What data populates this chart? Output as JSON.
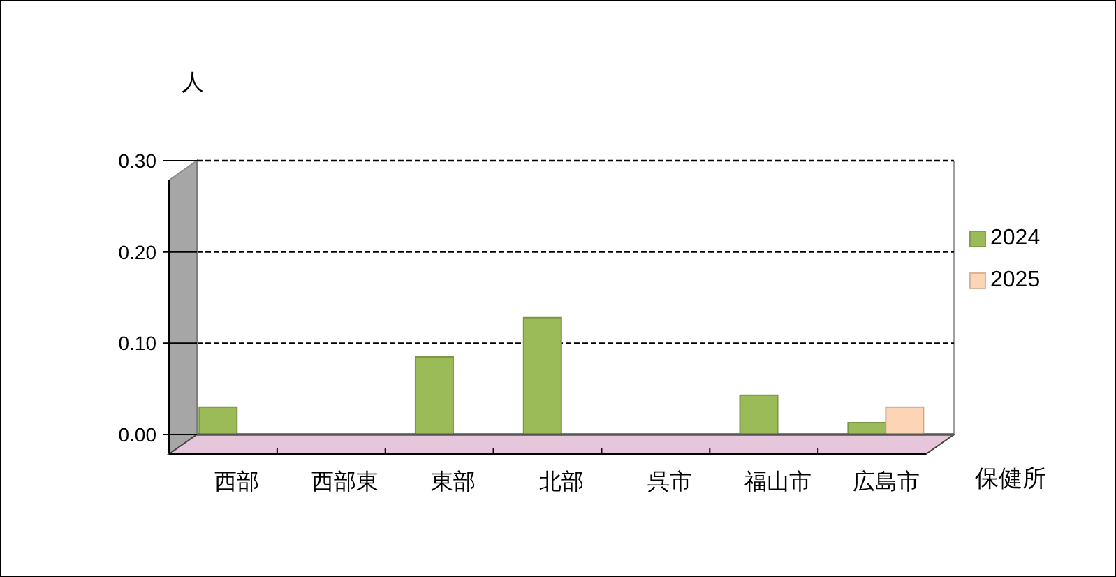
{
  "chart_data": {
    "type": "bar",
    "categories": [
      "西部",
      "西部東",
      "東部",
      "北部",
      "呉市",
      "福山市",
      "広島市"
    ],
    "series": [
      {
        "name": "2024",
        "color": "#9bbb59",
        "values": [
          0.03,
          0,
          0.085,
          0.128,
          0,
          0.043,
          0.013
        ]
      },
      {
        "name": "2025",
        "color": "#fcd5b5",
        "values": [
          0,
          0,
          0,
          0,
          0,
          0,
          0.03
        ]
      }
    ],
    "ylabel": "人",
    "xlabel": "保健所",
    "ylim": [
      0,
      0.3
    ],
    "yticks": [
      {
        "value": 0,
        "label": "0.00"
      },
      {
        "value": 0.1,
        "label": "0.10"
      },
      {
        "value": 0.2,
        "label": "0.20"
      },
      {
        "value": 0.3,
        "label": "0.30"
      }
    ],
    "grid": "y",
    "legend": "right"
  }
}
